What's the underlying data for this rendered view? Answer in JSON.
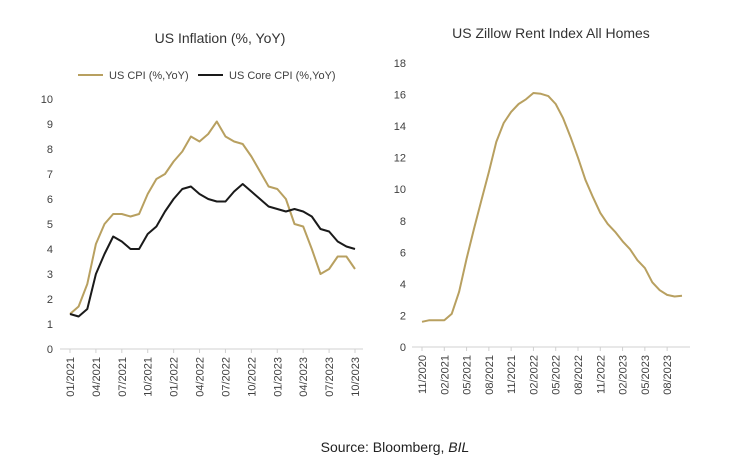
{
  "chart_data": [
    {
      "type": "line",
      "title": "US Inflation (%, YoY)",
      "xlabel": "",
      "ylabel": "",
      "ylim": [
        0,
        10
      ],
      "yticks": [
        0,
        1,
        2,
        3,
        4,
        5,
        6,
        7,
        8,
        9,
        10
      ],
      "grid": false,
      "legend": "top",
      "x_tick_labels": [
        "01/2021",
        "04/2021",
        "07/2021",
        "10/2021",
        "01/2022",
        "04/2022",
        "07/2022",
        "10/2022",
        "01/2023",
        "04/2023",
        "07/2023",
        "10/2023"
      ],
      "x": [
        "01/2021",
        "02/2021",
        "03/2021",
        "04/2021",
        "05/2021",
        "06/2021",
        "07/2021",
        "08/2021",
        "09/2021",
        "10/2021",
        "11/2021",
        "12/2021",
        "01/2022",
        "02/2022",
        "03/2022",
        "04/2022",
        "05/2022",
        "06/2022",
        "07/2022",
        "08/2022",
        "09/2022",
        "10/2022",
        "11/2022",
        "12/2022",
        "01/2023",
        "02/2023",
        "03/2023",
        "04/2023",
        "05/2023",
        "06/2023",
        "07/2023",
        "08/2023",
        "09/2023",
        "10/2023"
      ],
      "series": [
        {
          "name": "US CPI (%,YoY)",
          "color": "#b8a060",
          "values": [
            1.4,
            1.7,
            2.6,
            4.2,
            5.0,
            5.4,
            5.4,
            5.3,
            5.4,
            6.2,
            6.8,
            7.0,
            7.5,
            7.9,
            8.5,
            8.3,
            8.6,
            9.1,
            8.5,
            8.3,
            8.2,
            7.7,
            7.1,
            6.5,
            6.4,
            6.0,
            5.0,
            4.9,
            4.0,
            3.0,
            3.2,
            3.7,
            3.7,
            3.2
          ]
        },
        {
          "name": "US Core CPI (%,YoY)",
          "color": "#1a1a1a",
          "values": [
            1.4,
            1.3,
            1.6,
            3.0,
            3.8,
            4.5,
            4.3,
            4.0,
            4.0,
            4.6,
            4.9,
            5.5,
            6.0,
            6.4,
            6.5,
            6.2,
            6.0,
            5.9,
            5.9,
            6.3,
            6.6,
            6.3,
            6.0,
            5.7,
            5.6,
            5.5,
            5.6,
            5.5,
            5.3,
            4.8,
            4.7,
            4.3,
            4.1,
            4.0
          ]
        }
      ]
    },
    {
      "type": "line",
      "title": "US Zillow Rent Index All Homes",
      "xlabel": "",
      "ylabel": "",
      "ylim": [
        0,
        18
      ],
      "yticks": [
        0,
        2,
        4,
        6,
        8,
        10,
        12,
        14,
        16,
        18
      ],
      "grid": false,
      "x_tick_labels": [
        "11/2020",
        "02/2021",
        "05/2021",
        "08/2021",
        "11/2021",
        "02/2022",
        "05/2022",
        "08/2022",
        "11/2022",
        "02/2023",
        "05/2023",
        "08/2023"
      ],
      "x": [
        "11/2020",
        "12/2020",
        "01/2021",
        "02/2021",
        "03/2021",
        "04/2021",
        "05/2021",
        "06/2021",
        "07/2021",
        "08/2021",
        "09/2021",
        "10/2021",
        "11/2021",
        "12/2021",
        "01/2022",
        "02/2022",
        "03/2022",
        "04/2022",
        "05/2022",
        "06/2022",
        "07/2022",
        "08/2022",
        "09/2022",
        "10/2022",
        "11/2022",
        "12/2022",
        "01/2023",
        "02/2023",
        "03/2023",
        "04/2023",
        "05/2023",
        "06/2023",
        "07/2023",
        "08/2023",
        "09/2023",
        "10/2023"
      ],
      "series": [
        {
          "name": "",
          "color": "#b8a060",
          "values": [
            1.6,
            1.7,
            1.7,
            1.7,
            2.1,
            3.5,
            5.6,
            7.5,
            9.3,
            11.1,
            13.0,
            14.2,
            14.9,
            15.4,
            15.7,
            16.1,
            16.05,
            15.9,
            15.4,
            14.5,
            13.3,
            12.0,
            10.6,
            9.5,
            8.5,
            7.8,
            7.3,
            6.7,
            6.2,
            5.5,
            5.0,
            4.1,
            3.6,
            3.3,
            3.2,
            3.25
          ]
        }
      ]
    }
  ],
  "footer": {
    "source_prefix": "Source: Bloomberg, ",
    "source_italic": "BIL"
  }
}
